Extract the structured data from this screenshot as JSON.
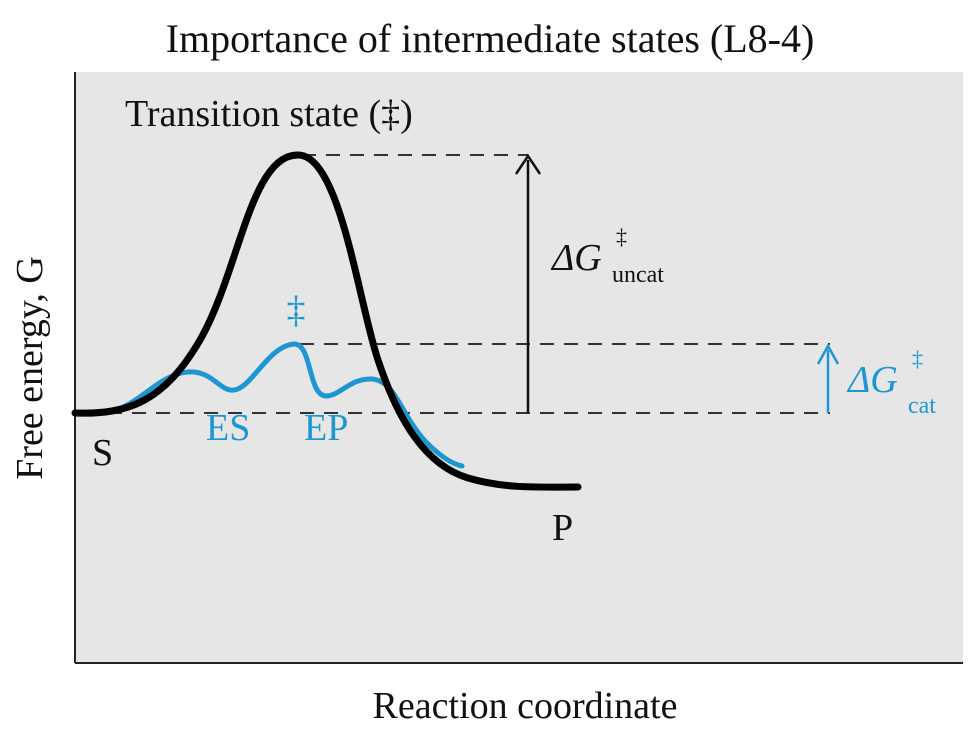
{
  "title": "Importance of intermediate states (L8-4)",
  "axes": {
    "x_label": "Reaction coordinate",
    "y_label": "Free energy, G"
  },
  "labels": {
    "transition_state": "Transition state (‡)",
    "catalyzed_transition_symbol": "‡",
    "substrate": "S",
    "product": "P",
    "enzyme_substrate": "ES",
    "enzyme_product": "EP",
    "dg_uncat": {
      "symbol": "ΔG",
      "superscript": "‡",
      "subscript": "uncat"
    },
    "dg_cat": {
      "symbol": "ΔG",
      "superscript": "‡",
      "subscript": "cat"
    }
  },
  "colors": {
    "uncatalyzed_curve": "#000000",
    "catalyzed_curve": "#1e96d2",
    "plot_background": "#e6e6e6",
    "guide_lines": "#333333"
  }
}
